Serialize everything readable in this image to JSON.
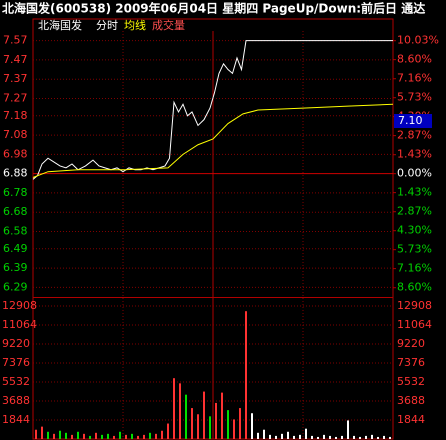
{
  "header": "北海国发(600538) 2009年06月04日 星期四 PageUp/Down:前后日 通达",
  "price_marker": "7.10",
  "chart_data": [
    {
      "type": "line",
      "title": "北海国发",
      "xlim": [
        0,
        240
      ],
      "ylim": [
        6.24,
        7.62
      ],
      "y2lim": [
        -9.3,
        10.76
      ],
      "grid": true,
      "yticks": [
        7.57,
        7.47,
        7.37,
        7.27,
        7.18,
        7.08,
        6.98,
        6.88,
        6.78,
        6.68,
        6.58,
        6.49,
        6.39,
        6.29
      ],
      "y2ticks": [
        {
          "value": 10.03,
          "label": "10.03%"
        },
        {
          "value": 8.6,
          "label": "8.60%"
        },
        {
          "value": 7.16,
          "label": "7.16%"
        },
        {
          "value": 5.73,
          "label": "5.73%"
        },
        {
          "value": 4.3,
          "label": "4.30%"
        },
        {
          "value": 2.87,
          "label": "2.87%"
        },
        {
          "value": 1.43,
          "label": "1.43%"
        },
        {
          "value": 0,
          "label": "0.00%"
        },
        {
          "value": -1.43,
          "label": "1.43%"
        },
        {
          "value": -2.87,
          "label": "2.87%"
        },
        {
          "value": -4.3,
          "label": "4.30%"
        },
        {
          "value": -5.73,
          "label": "5.73%"
        },
        {
          "value": -7.16,
          "label": "7.16%"
        },
        {
          "value": -8.6,
          "label": "8.60%"
        }
      ],
      "series": [
        {
          "name": "分时",
          "color": "#ffffff",
          "x": [
            0,
            3,
            6,
            10,
            14,
            18,
            22,
            26,
            30,
            35,
            40,
            44,
            48,
            52,
            56,
            60,
            64,
            68,
            72,
            76,
            80,
            84,
            88,
            91,
            94,
            97,
            100,
            103,
            106,
            110,
            114,
            118,
            121,
            124,
            127,
            130,
            133,
            136,
            139,
            142,
            150,
            180,
            210,
            240
          ],
          "values": [
            6.85,
            6.87,
            6.93,
            6.96,
            6.94,
            6.92,
            6.91,
            6.93,
            6.9,
            6.92,
            6.95,
            6.92,
            6.91,
            6.9,
            6.91,
            6.89,
            6.91,
            6.9,
            6.9,
            6.91,
            6.9,
            6.91,
            6.92,
            6.96,
            7.25,
            7.2,
            7.24,
            7.18,
            7.2,
            7.13,
            7.16,
            7.22,
            7.3,
            7.4,
            7.45,
            7.42,
            7.4,
            7.48,
            7.42,
            7.57,
            7.57,
            7.57,
            7.57,
            7.57
          ]
        },
        {
          "name": "均线",
          "color": "#ffff00",
          "x": [
            0,
            10,
            30,
            60,
            90,
            100,
            110,
            120,
            130,
            140,
            150,
            180,
            210,
            240
          ],
          "values": [
            6.86,
            6.89,
            6.9,
            6.9,
            6.91,
            6.98,
            7.03,
            7.06,
            7.14,
            7.19,
            7.21,
            7.22,
            7.23,
            7.24
          ]
        }
      ]
    },
    {
      "type": "bar",
      "title": "成交量",
      "xlim": [
        0,
        240
      ],
      "ylim": [
        0,
        13680
      ],
      "grid": true,
      "yticks": [
        12908,
        11064,
        9220,
        7376,
        5532,
        3688,
        1844
      ],
      "x": [
        2,
        6,
        10,
        14,
        18,
        22,
        26,
        30,
        34,
        38,
        42,
        46,
        50,
        54,
        58,
        62,
        66,
        70,
        74,
        78,
        82,
        86,
        90,
        94,
        98,
        102,
        106,
        110,
        114,
        118,
        122,
        126,
        130,
        134,
        138,
        142,
        146,
        150,
        154,
        158,
        162,
        166,
        170,
        174,
        178,
        182,
        186,
        190,
        194,
        198,
        202,
        206,
        210,
        214,
        218,
        222,
        226,
        230,
        234,
        238
      ],
      "values": [
        900,
        1200,
        700,
        500,
        800,
        600,
        400,
        700,
        500,
        300,
        600,
        400,
        500,
        300,
        700,
        400,
        500,
        300,
        400,
        600,
        500,
        800,
        1500,
        5900,
        5400,
        4300,
        3000,
        2400,
        4600,
        2200,
        3500,
        4500,
        2800,
        1900,
        3000,
        12400,
        2500,
        600,
        900,
        400,
        300,
        500,
        700,
        300,
        400,
        1000,
        300,
        200,
        400,
        300,
        200,
        300,
        1800,
        300,
        200,
        300,
        400,
        200,
        300,
        200
      ],
      "colors": [
        "#ff3232",
        "#ff3232",
        "#00e000",
        "#ff3232",
        "#00e000",
        "#00e000",
        "#ff3232",
        "#00e000",
        "#ff3232",
        "#00e000",
        "#ff3232",
        "#00e000",
        "#00e000",
        "#ff3232",
        "#00e000",
        "#ff3232",
        "#00e000",
        "#ff3232",
        "#ff3232",
        "#00e000",
        "#ff3232",
        "#ff3232",
        "#ff3232",
        "#ff3232",
        "#ff3232",
        "#00e000",
        "#ff3232",
        "#ff3232",
        "#ff3232",
        "#00e000",
        "#ff3232",
        "#ff3232",
        "#00e000",
        "#ff3232",
        "#ff3232",
        "#ff3232",
        "#ffffff",
        "#ffffff",
        "#ffffff",
        "#ffffff",
        "#ffffff",
        "#ffffff",
        "#ffffff",
        "#ffffff",
        "#ffffff",
        "#ffffff",
        "#ffffff",
        "#ffffff",
        "#ffffff",
        "#ffffff",
        "#ffffff",
        "#ffffff",
        "#ffffff",
        "#ffffff",
        "#ffffff",
        "#ffffff",
        "#ffffff",
        "#ffffff",
        "#ffffff",
        "#ffffff"
      ]
    }
  ]
}
